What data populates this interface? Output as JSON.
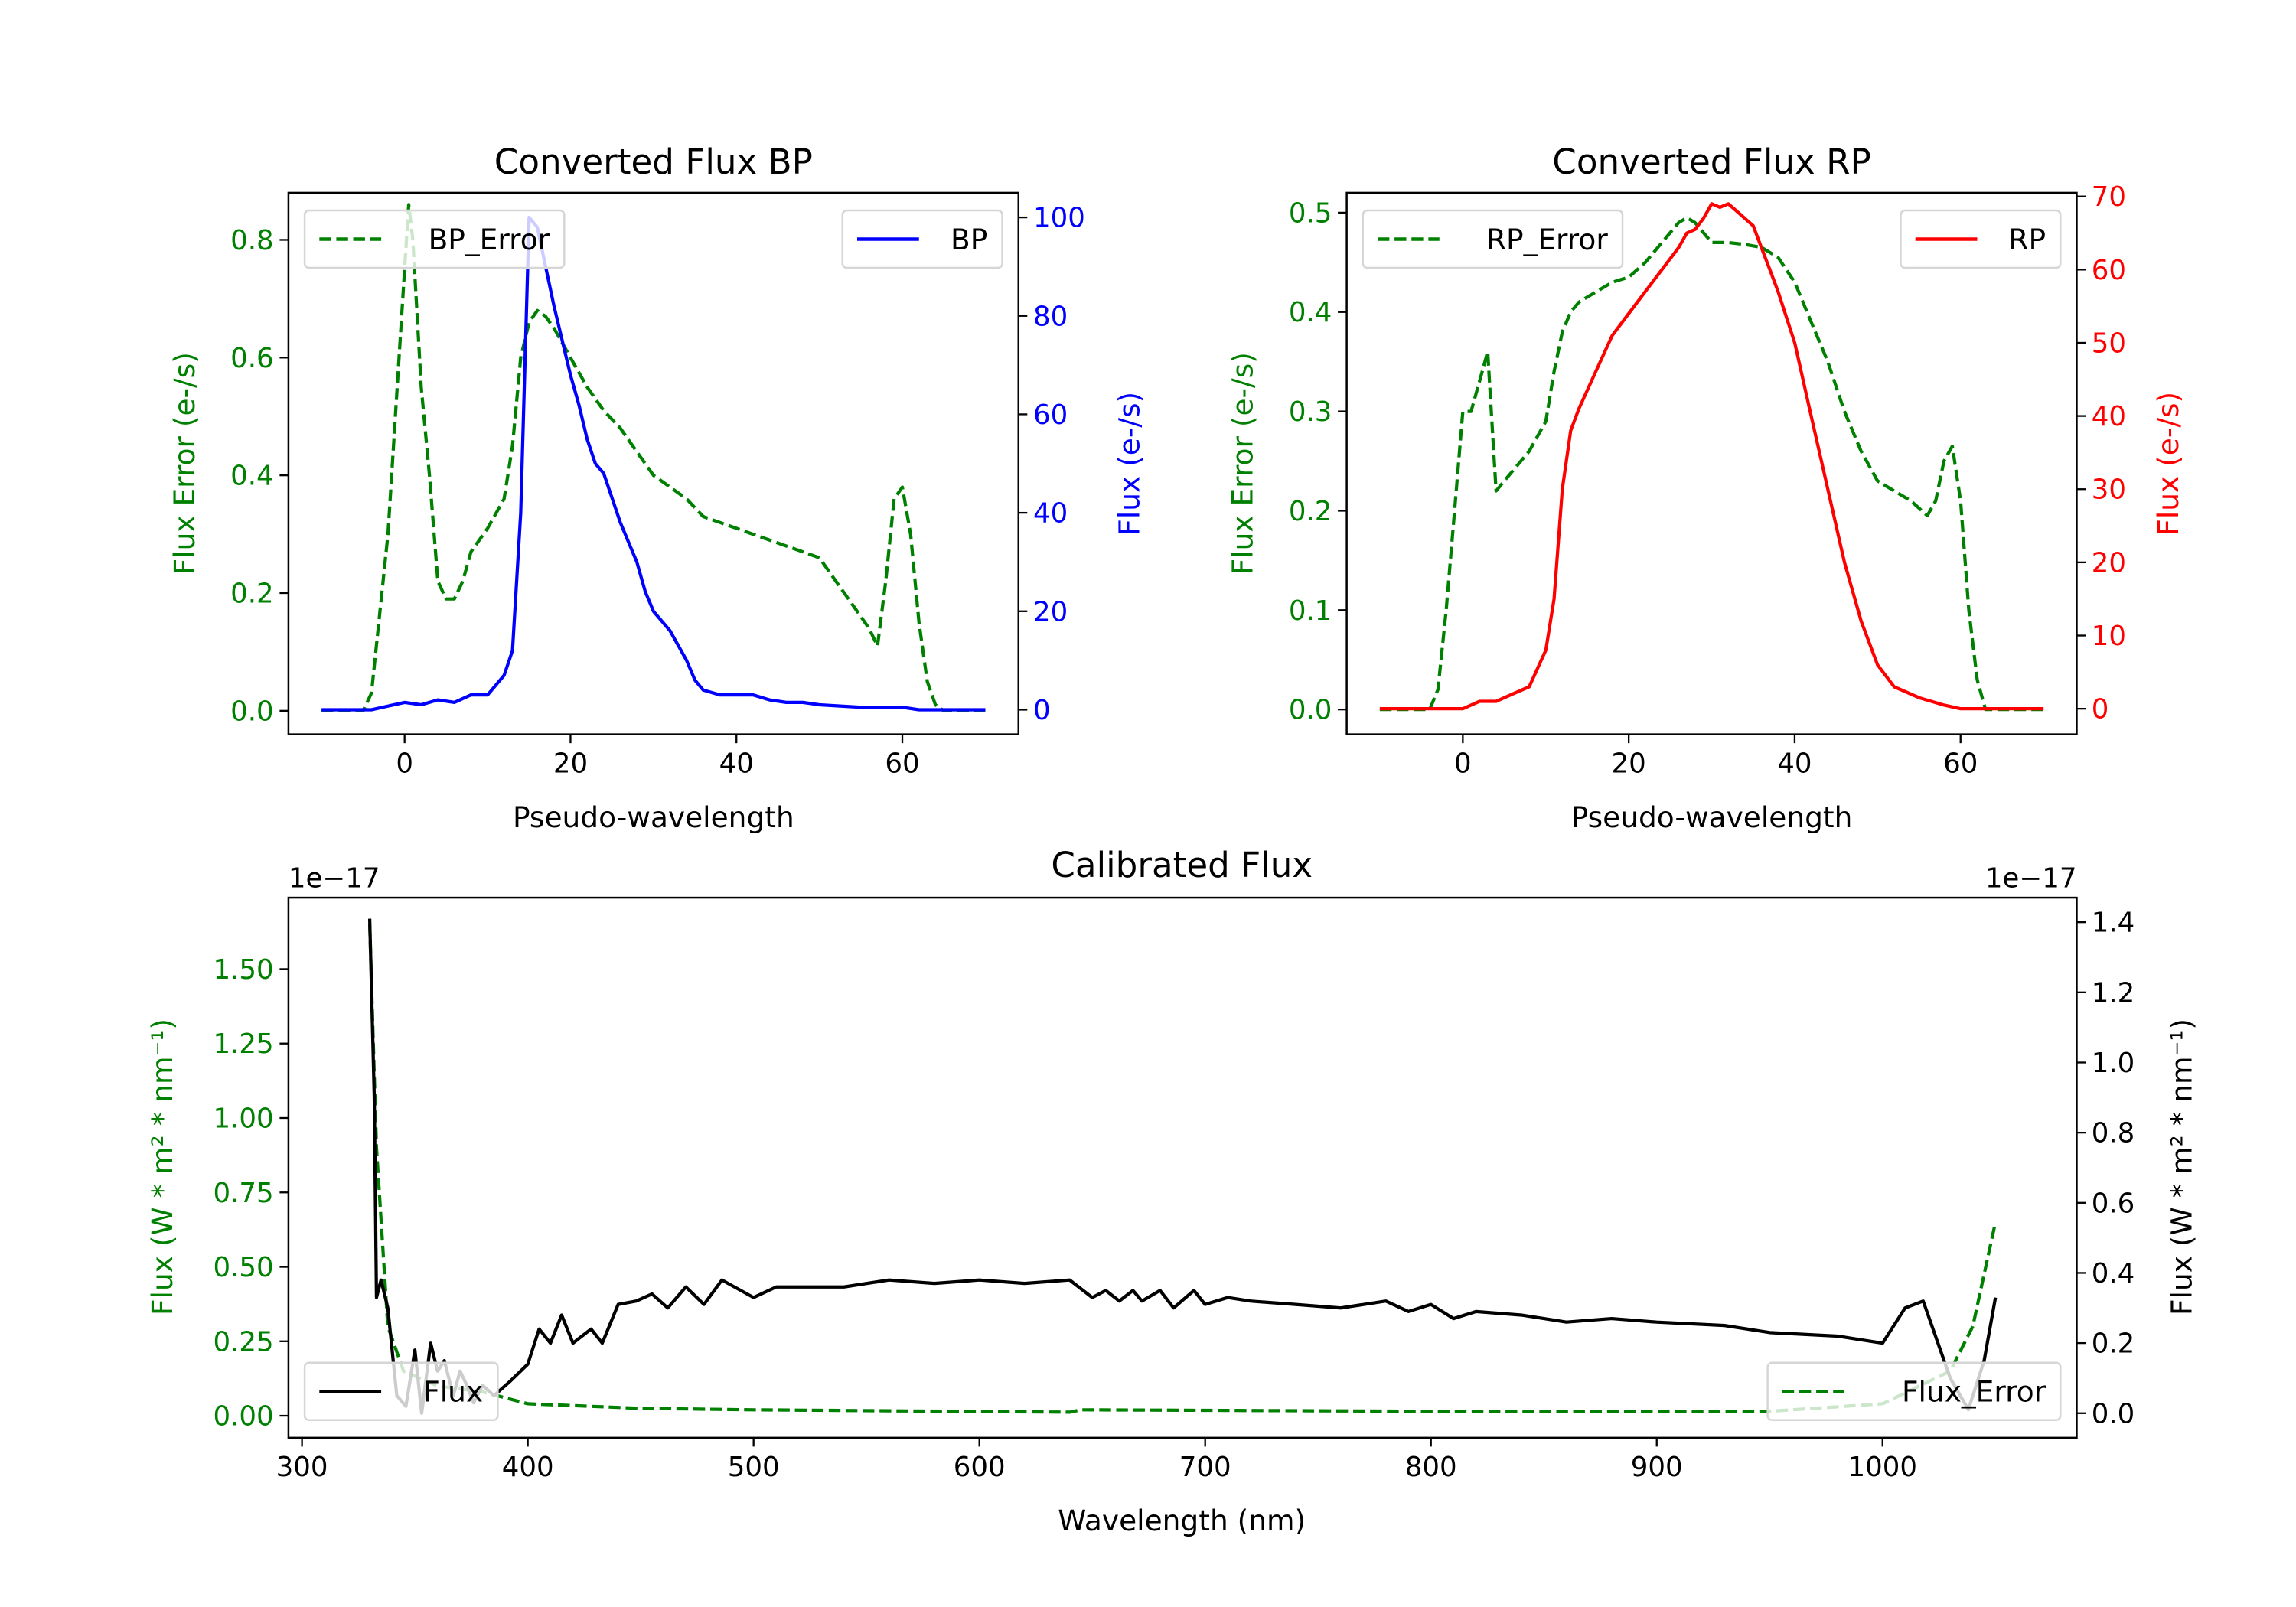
{
  "colors": {
    "bp": "#0000ff",
    "rp": "#ff0000",
    "error": "#008000",
    "flux": "#000000"
  },
  "chart_data": [
    {
      "id": "bp",
      "type": "line",
      "title": "Converted Flux BP",
      "xlabel": "Pseudo-wavelength",
      "ylabel_left": "Flux Error (e-/s)",
      "ylabel_right": "Flux (e-/s)",
      "xlim": [
        -14,
        74
      ],
      "ylim_left": [
        -0.04,
        0.88
      ],
      "ylim_right": [
        -5,
        105
      ],
      "xticks": [
        0,
        20,
        40,
        60
      ],
      "xtick_labels": [
        "0",
        "20",
        "40",
        "60"
      ],
      "yticks_left": [
        0,
        0.2,
        0.4,
        0.6,
        0.8
      ],
      "ytick_labels_left": [
        "0.0",
        "0.2",
        "0.4",
        "0.6",
        "0.8"
      ],
      "yticks_right": [
        0,
        20,
        40,
        60,
        80,
        100
      ],
      "ytick_labels_right": [
        "0",
        "20",
        "40",
        "60",
        "80",
        "100"
      ],
      "legend": [
        {
          "label": "BP_Error",
          "style": "dashed",
          "color": "#008000",
          "placement": "upper-left"
        },
        {
          "label": "BP",
          "style": "solid",
          "color": "#0000ff",
          "placement": "upper-right"
        }
      ],
      "series": [
        {
          "name": "BP_Error",
          "axis": "left",
          "style": "dashed",
          "color": "#008000",
          "x": [
            -10,
            -5,
            -4,
            -2,
            0,
            0.5,
            1,
            2,
            3,
            4,
            5,
            6,
            7,
            8,
            10,
            12,
            13,
            14,
            15,
            16,
            17,
            18,
            20,
            22,
            24,
            26,
            28,
            30,
            32,
            34,
            36,
            38,
            40,
            42,
            44,
            46,
            48,
            50,
            52,
            54,
            56,
            57,
            58,
            59,
            60,
            61,
            62,
            63,
            64,
            65,
            70
          ],
          "y": [
            0,
            0,
            0.03,
            0.3,
            0.75,
            0.86,
            0.8,
            0.55,
            0.4,
            0.22,
            0.19,
            0.19,
            0.22,
            0.27,
            0.31,
            0.36,
            0.45,
            0.6,
            0.66,
            0.68,
            0.67,
            0.65,
            0.6,
            0.55,
            0.51,
            0.48,
            0.44,
            0.4,
            0.38,
            0.36,
            0.33,
            0.32,
            0.31,
            0.3,
            0.29,
            0.28,
            0.27,
            0.26,
            0.22,
            0.18,
            0.14,
            0.11,
            0.22,
            0.36,
            0.38,
            0.3,
            0.15,
            0.05,
            0.01,
            0,
            0
          ]
        },
        {
          "name": "BP",
          "axis": "right",
          "style": "solid",
          "color": "#0000ff",
          "x": [
            -10,
            -4,
            0,
            2,
            4,
            6,
            8,
            10,
            12,
            13,
            14,
            15,
            16,
            17,
            18,
            19,
            20,
            21,
            22,
            23,
            24,
            26,
            28,
            29,
            30,
            32,
            34,
            35,
            36,
            38,
            40,
            42,
            44,
            46,
            48,
            50,
            55,
            60,
            62,
            70
          ],
          "y": [
            0,
            0,
            1.5,
            1,
            2,
            1.5,
            3,
            3,
            7,
            12,
            40,
            100,
            98,
            90,
            82,
            75,
            68,
            62,
            55,
            50,
            48,
            38,
            30,
            24,
            20,
            16,
            10,
            6,
            4,
            3,
            3,
            3,
            2,
            1.5,
            1.5,
            1,
            0.5,
            0.5,
            0,
            0
          ]
        }
      ]
    },
    {
      "id": "rp",
      "type": "line",
      "title": "Converted Flux RP",
      "xlabel": "Pseudo-wavelength",
      "ylabel_left": "Flux Error (e-/s)",
      "ylabel_right": "Flux (e-/s)",
      "xlim": [
        -14,
        74
      ],
      "ylim_left": [
        -0.025,
        0.52
      ],
      "ylim_right": [
        -3.5,
        70.5
      ],
      "xticks": [
        0,
        20,
        40,
        60
      ],
      "xtick_labels": [
        "0",
        "20",
        "40",
        "60"
      ],
      "yticks_left": [
        0,
        0.1,
        0.2,
        0.3,
        0.4,
        0.5
      ],
      "ytick_labels_left": [
        "0.0",
        "0.1",
        "0.2",
        "0.3",
        "0.4",
        "0.5"
      ],
      "yticks_right": [
        0,
        10,
        20,
        30,
        40,
        50,
        60,
        70
      ],
      "ytick_labels_right": [
        "0",
        "10",
        "20",
        "30",
        "40",
        "50",
        "60",
        "70"
      ],
      "legend": [
        {
          "label": "RP_Error",
          "style": "dashed",
          "color": "#008000",
          "placement": "upper-left"
        },
        {
          "label": "RP",
          "style": "solid",
          "color": "#ff0000",
          "placement": "upper-right"
        }
      ],
      "series": [
        {
          "name": "RP_Error",
          "axis": "left",
          "style": "dashed",
          "color": "#008000",
          "x": [
            -10,
            -4,
            -3,
            -2,
            -1,
            0,
            1,
            2,
            3,
            4,
            5,
            6,
            8,
            10,
            11,
            12,
            13,
            14,
            16,
            18,
            20,
            22,
            24,
            26,
            27,
            28,
            30,
            32,
            34,
            36,
            38,
            40,
            42,
            44,
            46,
            48,
            50,
            52,
            54,
            56,
            57,
            58,
            59,
            60,
            61,
            62,
            63,
            70
          ],
          "y": [
            0,
            0,
            0.02,
            0.1,
            0.2,
            0.3,
            0.3,
            0.33,
            0.36,
            0.22,
            0.23,
            0.24,
            0.26,
            0.29,
            0.34,
            0.38,
            0.4,
            0.41,
            0.42,
            0.43,
            0.435,
            0.45,
            0.47,
            0.49,
            0.495,
            0.49,
            0.47,
            0.47,
            0.468,
            0.465,
            0.455,
            0.43,
            0.39,
            0.35,
            0.3,
            0.26,
            0.23,
            0.22,
            0.21,
            0.195,
            0.21,
            0.25,
            0.265,
            0.21,
            0.1,
            0.03,
            0,
            0
          ]
        },
        {
          "name": "RP",
          "axis": "right",
          "style": "solid",
          "color": "#ff0000",
          "x": [
            -10,
            0,
            2,
            4,
            6,
            8,
            10,
            11,
            12,
            13,
            14,
            16,
            18,
            20,
            22,
            24,
            26,
            27,
            28,
            29,
            30,
            31,
            32,
            33,
            35,
            36,
            37,
            38,
            40,
            42,
            44,
            46,
            48,
            50,
            52,
            55,
            58,
            60,
            70
          ],
          "y": [
            0,
            0,
            1,
            1,
            2,
            3,
            8,
            15,
            30,
            38,
            41,
            46,
            51,
            54,
            57,
            60,
            63,
            65,
            65.5,
            67,
            69,
            68.5,
            69,
            68,
            66,
            63,
            60,
            57,
            50,
            40,
            30,
            20,
            12,
            6,
            3,
            1.5,
            0.5,
            0,
            0
          ]
        }
      ]
    },
    {
      "id": "calibrated",
      "type": "line",
      "title": "Calibrated Flux",
      "xlabel": "Wavelength (nm)",
      "ylabel_left": "Flux (W * m² * nm⁻¹)",
      "ylabel_right": "Flux (W * m² * nm⁻¹)",
      "offset_left": "1e−17",
      "offset_right": "1e−17",
      "xlim": [
        294,
        1086
      ],
      "ylim_left": [
        -0.074,
        1.74
      ],
      "ylim_right": [
        -0.07,
        1.47
      ],
      "xticks": [
        300,
        400,
        500,
        600,
        700,
        800,
        900,
        1000
      ],
      "xtick_labels": [
        "300",
        "400",
        "500",
        "600",
        "700",
        "800",
        "900",
        "1000"
      ],
      "yticks_left": [
        0,
        0.25,
        0.5,
        0.75,
        1.0,
        1.25,
        1.5
      ],
      "ytick_labels_left": [
        "0.00",
        "0.25",
        "0.50",
        "0.75",
        "1.00",
        "1.25",
        "1.50"
      ],
      "yticks_right": [
        0,
        0.2,
        0.4,
        0.6,
        0.8,
        1.0,
        1.2,
        1.4
      ],
      "ytick_labels_right": [
        "0.0",
        "0.2",
        "0.4",
        "0.6",
        "0.8",
        "1.0",
        "1.2",
        "1.4"
      ],
      "legend": [
        {
          "label": "Flux",
          "style": "solid",
          "color": "#000000",
          "placement": "lower-left"
        },
        {
          "label": "Flux_Error",
          "style": "dashed",
          "color": "#008000",
          "placement": "lower-right"
        }
      ],
      "series": [
        {
          "name": "Flux_Error",
          "axis": "left",
          "style": "dashed",
          "color": "#008000",
          "x": [
            330,
            333,
            338,
            345,
            360,
            380,
            400,
            450,
            500,
            640,
            645,
            800,
            950,
            1000,
            1030,
            1040,
            1050
          ],
          "y": [
            1.65,
            0.9,
            0.3,
            0.15,
            0.1,
            0.08,
            0.04,
            0.025,
            0.02,
            0.012,
            0.02,
            0.015,
            0.015,
            0.04,
            0.15,
            0.3,
            0.65
          ]
        },
        {
          "name": "Flux",
          "axis": "right",
          "style": "solid",
          "color": "#000000",
          "x": [
            330,
            332,
            333,
            335,
            338,
            342,
            346,
            350,
            353,
            357,
            360,
            363,
            367,
            370,
            373,
            376,
            380,
            385,
            392,
            400,
            405,
            410,
            415,
            420,
            428,
            433,
            440,
            448,
            455,
            462,
            470,
            478,
            486,
            500,
            510,
            520,
            540,
            560,
            580,
            600,
            620,
            640,
            650,
            656,
            662,
            668,
            672,
            680,
            686,
            695,
            700,
            710,
            720,
            740,
            760,
            780,
            790,
            800,
            810,
            820,
            840,
            860,
            880,
            900,
            930,
            950,
            980,
            1000,
            1010,
            1018,
            1030,
            1038,
            1045,
            1050
          ],
          "y": [
            1.41,
            0.9,
            0.33,
            0.38,
            0.3,
            0.05,
            0.02,
            0.18,
            0.0,
            0.2,
            0.12,
            0.15,
            0.05,
            0.12,
            0.08,
            0.03,
            0.08,
            0.05,
            0.09,
            0.14,
            0.24,
            0.2,
            0.28,
            0.2,
            0.24,
            0.2,
            0.31,
            0.32,
            0.34,
            0.3,
            0.36,
            0.31,
            0.38,
            0.33,
            0.36,
            0.36,
            0.36,
            0.38,
            0.37,
            0.38,
            0.37,
            0.38,
            0.33,
            0.35,
            0.32,
            0.35,
            0.32,
            0.35,
            0.3,
            0.35,
            0.31,
            0.33,
            0.32,
            0.31,
            0.3,
            0.32,
            0.29,
            0.31,
            0.27,
            0.29,
            0.28,
            0.26,
            0.27,
            0.26,
            0.25,
            0.23,
            0.22,
            0.2,
            0.3,
            0.32,
            0.1,
            0.01,
            0.15,
            0.33
          ]
        }
      ]
    }
  ]
}
